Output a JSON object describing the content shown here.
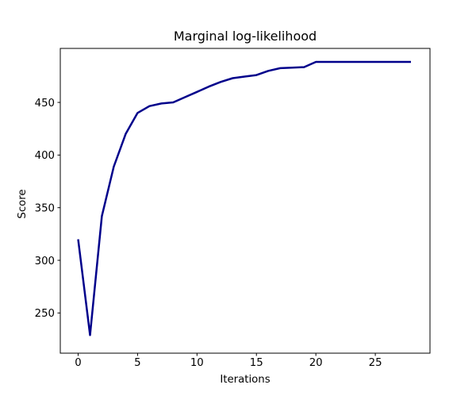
{
  "chart_data": {
    "type": "line",
    "title": "Marginal log-likelihood",
    "xlabel": "Iterations",
    "ylabel": "Score",
    "x": [
      0,
      1,
      2,
      3,
      4,
      5,
      6,
      7,
      8,
      9,
      10,
      11,
      12,
      13,
      14,
      15,
      16,
      17,
      18,
      19,
      20,
      21,
      22,
      23,
      24,
      25,
      26,
      27,
      28
    ],
    "y": [
      320,
      229,
      342,
      389,
      420,
      440,
      446.5,
      449,
      450,
      455,
      460,
      465,
      469.5,
      473,
      474.5,
      476,
      480,
      482.5,
      483,
      483.5,
      488.5,
      488.5,
      488.5,
      488.5,
      488.5,
      488.5,
      488.5,
      488.5,
      488.5
    ],
    "xticks": [
      0,
      5,
      10,
      15,
      20,
      25
    ],
    "yticks": [
      250,
      300,
      350,
      400,
      450
    ],
    "xlim": [
      -1.5,
      29.6
    ],
    "ylim": [
      211.8,
      501.3
    ],
    "line_color": "#00008B",
    "line_width": 2.5,
    "background": "#ffffff",
    "grid": false
  }
}
